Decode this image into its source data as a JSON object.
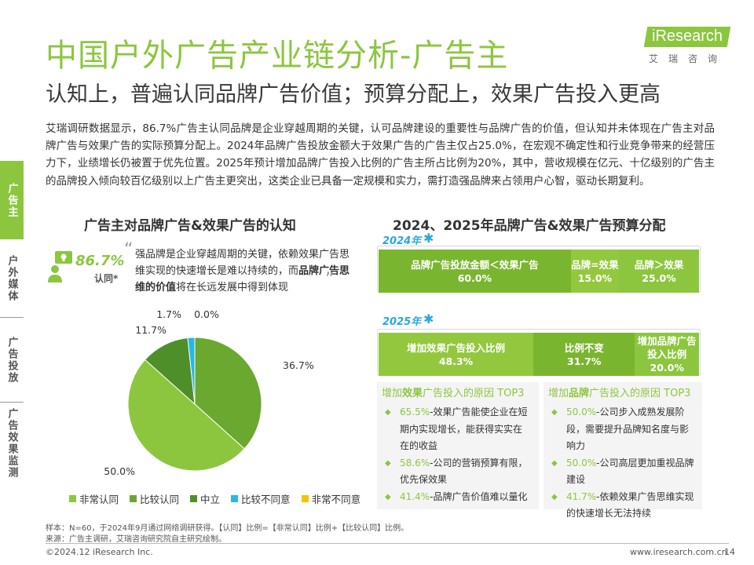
{
  "header": {
    "title": "中国户外广告产业链分析-广告主",
    "subtitle": "认知上，普遍认同品牌广告价值；预算分配上，效果广告投入更高"
  },
  "logo": {
    "text": "iResearch",
    "cn": "艾瑞咨询"
  },
  "intro": "艾瑞调研数据显示，86.7%广告主认同品牌是企业穿越周期的关键，认可品牌建设的重要性与品牌广告的价值，但认知并未体现在广告主对品牌广告与效果广告的实际预算分配上。2024年品牌广告投放金额大于效果广告的广告主仅占25.0%，在宏观不确定性和行业竞争带来的经营压力下，业绩增长仍被置于优先位置。2025年预计增加品牌广告投入比例的广告主所占比例为20%，其中，营收规模在亿元、十亿级别的广告主的品牌投入倾向较百亿级别以上广告主更突出，这类企业已具备一定规模和实力，需打造强品牌来占领用户心智，驱动长期复利。",
  "side_tabs": [
    {
      "label": "广告主",
      "active": true
    },
    {
      "label": "户外媒体",
      "active": false
    },
    {
      "label": "广告投放",
      "active": false
    },
    {
      "label": "广告效果监测",
      "active": false
    }
  ],
  "left_section": {
    "title": "广告主对品牌广告&效果广告的认知",
    "stat_pct": "86.7%",
    "stat_label": "认同*",
    "quote_open": "“",
    "quote_close": "”",
    "quote_part1": "强品牌是企业穿越周期的关键，依赖效果广告思维实现的快速增长是难以持续的，而",
    "quote_bold": "品牌广告思维的价值",
    "quote_part2": "将在长远发展中得到体现"
  },
  "right_section": {
    "title": "2024、2025年品牌广告&效果广告预算分配",
    "year_2024": "2024年",
    "year_2025": "2025年",
    "bar_2024": [
      {
        "label": "品牌广告投放金额＜效果广告",
        "value": "60.0%",
        "share": 60.0,
        "color": "#7ab52f"
      },
      {
        "label": "品牌=效果",
        "value": "15.0%",
        "share": 15.0,
        "color": "#93c83e"
      },
      {
        "label": "品牌＞效果",
        "value": "25.0%",
        "share": 25.0,
        "color": "#8cc63f"
      }
    ],
    "bar_2025": [
      {
        "label": "增加效果广告投入比例",
        "value": "48.3%",
        "share": 48.3,
        "color": "#93c83e"
      },
      {
        "label": "比例不变",
        "value": "31.7%",
        "share": 31.7,
        "color": "#7ab52f"
      },
      {
        "label": "增加品牌广告投入比例",
        "value": "20.0%",
        "share": 20.0,
        "color": "#8cc63f"
      }
    ],
    "reasons_effect": {
      "title_pre": "增加",
      "title_bold": "效果",
      "title_post": "广告投入的原因 TOP3",
      "items": [
        {
          "pct": "65.5%",
          "text": "-效果广告能使企业在短期内实现增长，能获得实实在在的收益"
        },
        {
          "pct": "58.6%",
          "text": "-公司的营销预算有限，优先保效果"
        },
        {
          "pct": "41.4%",
          "text": "-品牌广告价值难以量化"
        }
      ]
    },
    "reasons_brand": {
      "title_pre": "增加",
      "title_bold": "品牌",
      "title_post": "广告投入的原因 TOP3",
      "items": [
        {
          "pct": "50.0%",
          "text": "-公司步入成熟发展阶段，需要提升品牌知名度与影响力"
        },
        {
          "pct": "50.0%",
          "text": "-公司高层更加重视品牌建设"
        },
        {
          "pct": "41.7%",
          "text": "-依赖效果广告思维实现的快速增长无法持续"
        }
      ]
    }
  },
  "chart_data": {
    "type": "pie",
    "title": "广告主对品牌广告&效果广告的认知",
    "slices": [
      {
        "name": "非常认同",
        "value": 50.0,
        "label": "50.0%",
        "color": "#8cc63f"
      },
      {
        "name": "比较认同",
        "value": 36.7,
        "label": "36.7%",
        "color": "#6aa82f"
      },
      {
        "name": "中立",
        "value": 11.7,
        "label": "11.7%",
        "color": "#4f8f2a"
      },
      {
        "name": "比较不同意",
        "value": 1.7,
        "label": "1.7%",
        "color": "#29b6e8"
      },
      {
        "name": "非常不同意",
        "value": 0.0,
        "label": "0.0%",
        "color": "#f5c400"
      }
    ],
    "legend_position": "bottom"
  },
  "footer": {
    "note1": "样本：N=60，于2024年9月通过网络调研获得。【认同】比例=【非常认同】比例+【比较认同】比例。",
    "note2": "来源：广告主调研，艾瑞咨询研究院自主研究绘制。",
    "copyright": "©2024.12 iResearch Inc.",
    "site": "www.iresearch.com.cn",
    "page": "14"
  }
}
